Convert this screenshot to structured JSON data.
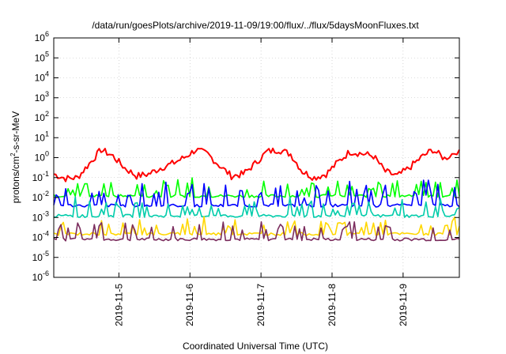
{
  "chart_data": {
    "type": "line",
    "title": "/data/run/goesPlots/archive/2019-11-09/19:00/flux/../flux/5daysMoonFluxes.txt",
    "xlabel": "Coordinated Universal Time (UTC)",
    "ylabel": {
      "base": "protons/cm",
      "exp": "2",
      "rest": "-s-sr-MeV"
    },
    "y_scale": "log",
    "ylim": [
      1e-06,
      1000000.0
    ],
    "y_ticks": [
      {
        "exp": "-6",
        "value": 1e-06
      },
      {
        "exp": "-5",
        "value": 1e-05
      },
      {
        "exp": "-4",
        "value": 0.0001
      },
      {
        "exp": "-3",
        "value": 0.001
      },
      {
        "exp": "-2",
        "value": 0.01
      },
      {
        "exp": "-1",
        "value": 0.1
      },
      {
        "exp": "0",
        "value": 1
      },
      {
        "exp": "1",
        "value": 10
      },
      {
        "exp": "2",
        "value": 100
      },
      {
        "exp": "3",
        "value": 1000
      },
      {
        "exp": "4",
        "value": 10000
      },
      {
        "exp": "5",
        "value": 100000
      },
      {
        "exp": "6",
        "value": 1000000
      }
    ],
    "y_tick_base": "10",
    "xlim": [
      "2019-11-04T02:00",
      "2019-11-09T19:00"
    ],
    "x_ticks": [
      {
        "label": "2019-11-5",
        "date": "2019-11-05T00:00"
      },
      {
        "label": "2019-11-6",
        "date": "2019-11-06T00:00"
      },
      {
        "label": "2019-11-7",
        "date": "2019-11-07T00:00"
      },
      {
        "label": "2019-11-8",
        "date": "2019-11-08T00:00"
      },
      {
        "label": "2019-11-9",
        "date": "2019-11-09T00:00"
      }
    ],
    "grid": true,
    "legend": "none",
    "series": [
      {
        "color": "#ff0000",
        "points": [
          [
            "2019-11-04T02:00",
            0.15
          ],
          [
            "2019-11-04T06:00",
            0.09
          ],
          [
            "2019-11-04T10:00",
            0.1
          ],
          [
            "2019-11-04T14:00",
            0.5
          ],
          [
            "2019-11-04T18:00",
            2.5
          ],
          [
            "2019-11-04T22:00",
            1.2
          ],
          [
            "2019-11-05T02:00",
            0.3
          ],
          [
            "2019-11-05T06:00",
            0.12
          ],
          [
            "2019-11-05T10:00",
            0.15
          ],
          [
            "2019-11-05T14:00",
            0.3
          ],
          [
            "2019-11-05T18:00",
            0.5
          ],
          [
            "2019-11-05T22:00",
            1.0
          ],
          [
            "2019-11-06T02:00",
            2.5
          ],
          [
            "2019-11-06T06:00",
            1.5
          ],
          [
            "2019-11-06T10:00",
            0.4
          ],
          [
            "2019-11-06T14:00",
            0.12
          ],
          [
            "2019-11-06T18:00",
            0.15
          ],
          [
            "2019-11-06T22:00",
            0.5
          ],
          [
            "2019-11-07T02:00",
            2.0
          ],
          [
            "2019-11-07T06:00",
            2.5
          ],
          [
            "2019-11-07T10:00",
            1.5
          ],
          [
            "2019-11-07T14:00",
            0.2
          ],
          [
            "2019-11-07T18:00",
            0.1
          ],
          [
            "2019-11-07T22:00",
            0.15
          ],
          [
            "2019-11-08T02:00",
            0.6
          ],
          [
            "2019-11-08T06:00",
            2.0
          ],
          [
            "2019-11-08T10:00",
            1.6
          ],
          [
            "2019-11-08T14:00",
            1.2
          ],
          [
            "2019-11-08T18:00",
            0.2
          ],
          [
            "2019-11-08T22:00",
            0.12
          ],
          [
            "2019-11-09T02:00",
            0.3
          ],
          [
            "2019-11-09T06:00",
            1.0
          ],
          [
            "2019-11-09T10:00",
            2.5
          ],
          [
            "2019-11-09T14:00",
            0.9
          ],
          [
            "2019-11-09T19:00",
            2.5
          ]
        ]
      },
      {
        "color": "#00ff00",
        "base": 0.012,
        "spikes": [
          0.04,
          0.05,
          0.03,
          0.06,
          0.08,
          0.05
        ]
      },
      {
        "color": "#0000ff",
        "base": 0.004,
        "spikes": [
          0.02,
          0.03,
          0.015,
          0.03,
          0.05,
          0.02
        ]
      },
      {
        "color": "#00ccaa",
        "base": 0.0012,
        "spikes": [
          0.004,
          0.006,
          0.003,
          0.005,
          0.008,
          0.004
        ]
      },
      {
        "color": "#ffd700",
        "base": 0.00015,
        "spikes": [
          0.0005,
          0.0006,
          0.0004,
          0.0005,
          0.0007,
          0.0004
        ]
      },
      {
        "color": "#7b2d5e",
        "base": 8e-05,
        "spikes": [
          0.0003,
          0.0004,
          0.00025,
          0.0003,
          0.0004,
          0.0003
        ]
      }
    ]
  }
}
